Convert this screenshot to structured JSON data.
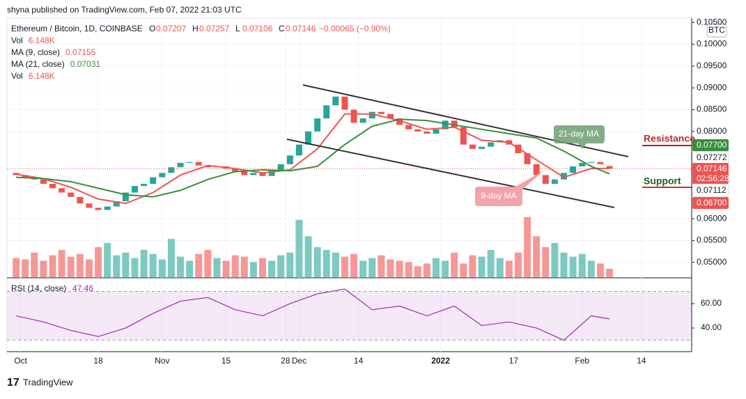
{
  "header": "shyna published on TradingView.com, Feb 07, 2022 21:03 UTC",
  "footer": "TradingView",
  "chart_data": {
    "type": "candlestick",
    "title": "Ethereum / Bitcoin, 1D, COINBASE",
    "ohlc_labels": [
      "O",
      "H",
      "L",
      "C"
    ],
    "ohlc": [
      0.07207,
      0.07257,
      0.07106,
      0.07146
    ],
    "change_label": "−0.00065 (−0.90%)",
    "currency": "BTC",
    "indicators": [
      {
        "name": "Vol",
        "value_label": "6.148K",
        "color": "#ef5350"
      },
      {
        "name": "MA (9, close)",
        "value": 0.07155,
        "color": "#ef5350"
      },
      {
        "name": "MA (21, close)",
        "value": 0.07031,
        "color": "#388e3c"
      },
      {
        "name": "Vol",
        "value_label": "6.148K",
        "color": "#ef5350"
      }
    ],
    "x": [
      0,
      2,
      4,
      6,
      8,
      10,
      12,
      14,
      16,
      18,
      20,
      22,
      24,
      26,
      28,
      30,
      32,
      34,
      36,
      38,
      40,
      42,
      44,
      46,
      48,
      50,
      52,
      54,
      56,
      58,
      60,
      62,
      64,
      66,
      68,
      70,
      72,
      74,
      76,
      78,
      80,
      82,
      84,
      86,
      88,
      90,
      92,
      94,
      96,
      98,
      100,
      102,
      104,
      106,
      108,
      110,
      112,
      114,
      116,
      118,
      120,
      122,
      124,
      126,
      128,
      130
    ],
    "open": [
      0.0705,
      0.07,
      0.0695,
      0.069,
      0.068,
      0.067,
      0.066,
      0.065,
      0.0635,
      0.0625,
      0.062,
      0.0628,
      0.064,
      0.066,
      0.0675,
      0.068,
      0.0695,
      0.0705,
      0.0718,
      0.0728,
      0.073,
      0.0722,
      0.0718,
      0.072,
      0.0715,
      0.0708,
      0.07,
      0.0705,
      0.0698,
      0.071,
      0.0725,
      0.0745,
      0.077,
      0.08,
      0.083,
      0.086,
      0.088,
      0.085,
      0.082,
      0.083,
      0.0845,
      0.084,
      0.083,
      0.0815,
      0.0805,
      0.08,
      0.0795,
      0.0805,
      0.0825,
      0.081,
      0.077,
      0.076,
      0.0765,
      0.0775,
      0.078,
      0.077,
      0.075,
      0.0725,
      0.07,
      0.068,
      0.069,
      0.0705,
      0.072,
      0.0728,
      0.073,
      0.07207
    ],
    "close": [
      0.07,
      0.0695,
      0.069,
      0.068,
      0.067,
      0.066,
      0.065,
      0.0635,
      0.0625,
      0.062,
      0.0628,
      0.064,
      0.066,
      0.0675,
      0.068,
      0.0695,
      0.0705,
      0.0718,
      0.0728,
      0.073,
      0.0722,
      0.0718,
      0.072,
      0.0715,
      0.0708,
      0.07,
      0.0705,
      0.0698,
      0.071,
      0.0725,
      0.0745,
      0.077,
      0.08,
      0.083,
      0.086,
      0.088,
      0.085,
      0.082,
      0.083,
      0.0845,
      0.084,
      0.083,
      0.0815,
      0.0805,
      0.08,
      0.0795,
      0.0805,
      0.0825,
      0.081,
      0.077,
      0.076,
      0.0765,
      0.0775,
      0.078,
      0.077,
      0.075,
      0.0725,
      0.07,
      0.068,
      0.069,
      0.0705,
      0.072,
      0.0728,
      0.073,
      0.0725,
      0.07146
    ],
    "up_color": "#26a69a",
    "down_color": "#ef5350",
    "xlim": [
      -2,
      148
    ],
    "xticks": [
      {
        "value": 1,
        "label": "Oct"
      },
      18,
      {
        "value": 32,
        "label": "Nov"
      },
      {
        "value": 46,
        "label": "15"
      },
      {
        "value": 59,
        "label": "28"
      },
      {
        "value": 62,
        "label": "Dec"
      },
      {
        "value": 75,
        "label": "14"
      },
      {
        "value": 93,
        "label": "2022"
      },
      {
        "value": 109,
        "label": "17"
      },
      {
        "value": 124,
        "label": "Feb"
      },
      {
        "value": 137,
        "label": "14"
      }
    ],
    "ylim": [
      0.0466,
      0.106
    ],
    "yticks": [
      {
        "value": 0.105,
        "label": "0.10500"
      },
      {
        "value": 0.1,
        "label": "0.10000"
      },
      {
        "value": 0.095,
        "label": "0.09500"
      },
      {
        "value": 0.09,
        "label": "0.09000"
      },
      {
        "value": 0.085,
        "label": "0.08500"
      },
      {
        "value": 0.08,
        "label": "0.08000"
      },
      {
        "value": 0.06,
        "label": "0.06000"
      },
      {
        "value": 0.055,
        "label": "0.05500"
      },
      {
        "value": 0.05,
        "label": "0.05000"
      }
    ],
    "grid": true,
    "volume": {
      "values": [
        14,
        13,
        18,
        12,
        16,
        20,
        15,
        17,
        13,
        22,
        25,
        16,
        18,
        14,
        20,
        17,
        13,
        28,
        15,
        12,
        17,
        20,
        14,
        12,
        16,
        15,
        11,
        14,
        12,
        16,
        18,
        42,
        30,
        22,
        20,
        18,
        15,
        17,
        12,
        14,
        16,
        13,
        12,
        11,
        8,
        10,
        14,
        12,
        18,
        10,
        16,
        15,
        20,
        14,
        12,
        18,
        44,
        30,
        22,
        25,
        18,
        15,
        17,
        12,
        10,
        6.148
      ],
      "ylim": [
        0,
        50
      ]
    },
    "series": [
      {
        "name": "MA (9, close)",
        "color": "#ef5350",
        "x": [
          0,
          6,
          12,
          18,
          24,
          30,
          36,
          42,
          48,
          54,
          60,
          66,
          72,
          78,
          84,
          90,
          96,
          102,
          108,
          114,
          120,
          126,
          130
        ],
        "values": [
          0.0702,
          0.0692,
          0.0672,
          0.0645,
          0.0635,
          0.066,
          0.07,
          0.0722,
          0.0715,
          0.0705,
          0.0712,
          0.076,
          0.084,
          0.084,
          0.0825,
          0.0805,
          0.081,
          0.078,
          0.0775,
          0.0735,
          0.0695,
          0.0715,
          0.07155
        ]
      },
      {
        "name": "MA (21, close)",
        "color": "#388e3c",
        "x": [
          0,
          6,
          12,
          18,
          24,
          30,
          36,
          42,
          48,
          54,
          60,
          66,
          72,
          78,
          84,
          90,
          96,
          102,
          108,
          114,
          120,
          126,
          130
        ],
        "values": [
          0.0695,
          0.0692,
          0.0685,
          0.067,
          0.0655,
          0.065,
          0.0665,
          0.069,
          0.0708,
          0.0712,
          0.071,
          0.072,
          0.077,
          0.0812,
          0.0828,
          0.0825,
          0.0815,
          0.0805,
          0.0795,
          0.0785,
          0.0755,
          0.072,
          0.07031
        ]
      }
    ],
    "price_tags": [
      {
        "value": 0.077,
        "label": "0.07700",
        "color": "#388e3c"
      },
      {
        "value": 0.07272,
        "label": "0.07272",
        "color": "#ffffff"
      },
      {
        "value": 0.07146,
        "label": "0.07146",
        "color": "#ef5350"
      },
      {
        "value": 0.07112,
        "label": "0.07112",
        "color": "#ffffff"
      },
      {
        "value": 0.067,
        "label": "0.06700",
        "color": "#ef5350"
      }
    ],
    "countdown": "02:56:28",
    "annotations": [
      "21-day MA",
      "9-day MA",
      "Resistance",
      "Support"
    ],
    "rsi": {
      "name": "RSI (14, close)",
      "value": 47.46,
      "color": "#9c27b0",
      "x": [
        0,
        6,
        12,
        18,
        24,
        30,
        36,
        42,
        48,
        54,
        60,
        66,
        72,
        78,
        84,
        90,
        96,
        102,
        108,
        114,
        120,
        126,
        130
      ],
      "values": [
        50,
        45,
        38,
        33,
        40,
        52,
        62,
        65,
        55,
        50,
        60,
        68,
        72,
        55,
        58,
        50,
        58,
        42,
        45,
        40,
        30,
        50,
        47.46
      ],
      "ylim": [
        20.6,
        80.6
      ],
      "band": [
        70,
        30
      ],
      "yticks": [
        {
          "value": 60,
          "label": "60.00"
        },
        {
          "value": 40,
          "label": "40.00"
        }
      ]
    }
  }
}
